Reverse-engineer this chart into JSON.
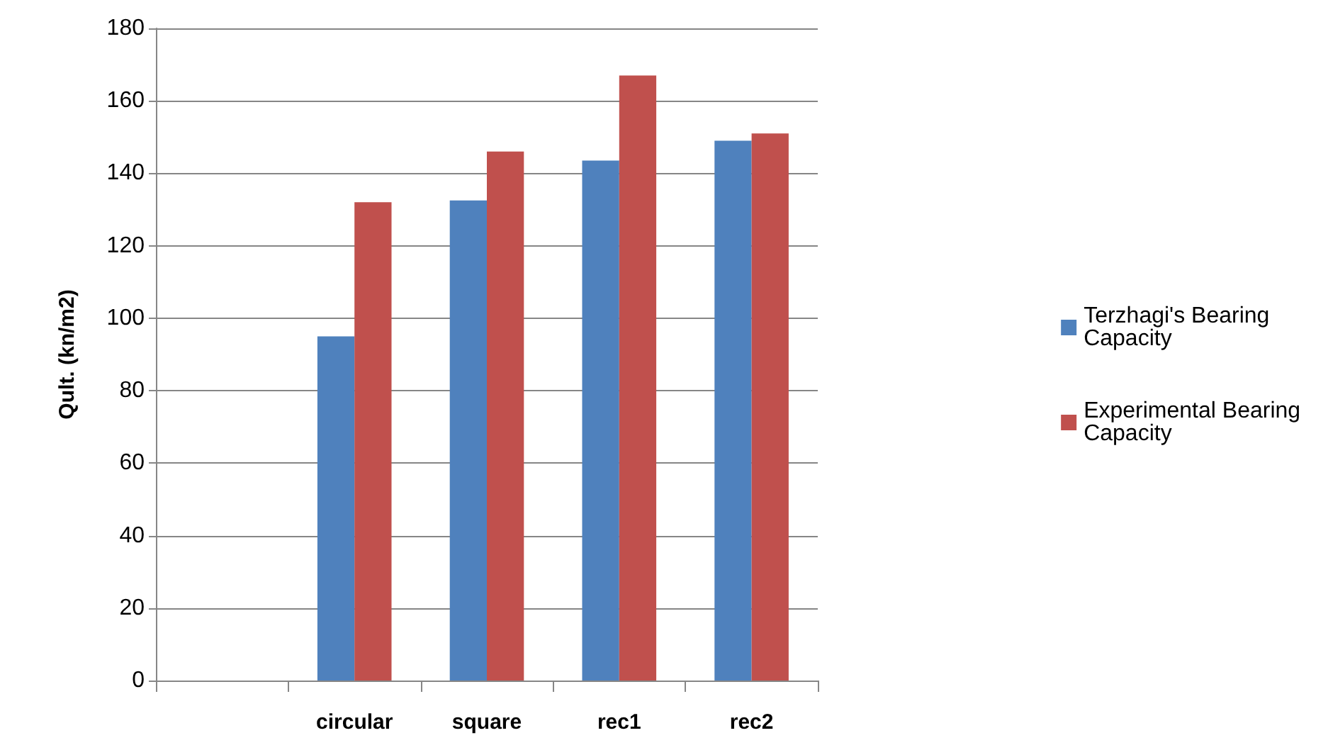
{
  "chart_data": {
    "type": "bar",
    "ylabel": "Qult. (kn/m2)",
    "categories": [
      null,
      "circular",
      "square",
      "rec1",
      "rec2"
    ],
    "series": [
      {
        "name": "Terzhagi's Bearing Capacity",
        "color": "#4f81bd",
        "values": [
          null,
          95,
          132.5,
          143.5,
          149
        ]
      },
      {
        "name": "Experimental Bearing Capacity",
        "color": "#c0504d",
        "values": [
          null,
          132,
          146,
          167,
          151
        ]
      }
    ],
    "ylim": [
      0,
      180
    ],
    "yticks": [
      0,
      20,
      40,
      60,
      80,
      100,
      120,
      140,
      160,
      180
    ],
    "grid": "y",
    "legend": "right"
  }
}
